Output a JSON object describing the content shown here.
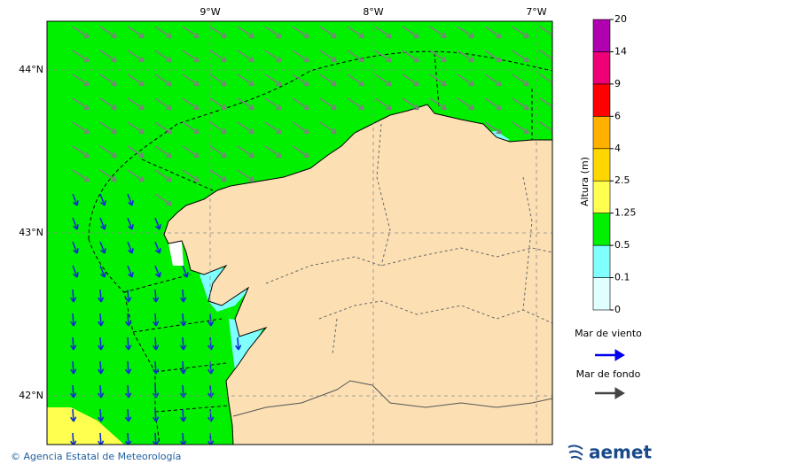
{
  "map": {
    "lon_labels": [
      "9°W",
      "8°W",
      "7°W"
    ],
    "lat_labels": [
      "44°N",
      "43°N",
      "42°N"
    ]
  },
  "colorbar": {
    "title": "Altura (m)",
    "ticks": [
      "0",
      "0.1",
      "0.5",
      "1.25",
      "2.5",
      "4",
      "6",
      "9",
      "14",
      "20"
    ],
    "colors": [
      "#e0ffff",
      "#80ffff",
      "#00f000",
      "#ffff50",
      "#ffd700",
      "#ffb000",
      "#ff0000",
      "#ee0077",
      "#b000b0"
    ]
  },
  "legend": {
    "wind_sea": "Mar de viento",
    "swell": "Mar de fondo"
  },
  "footer": {
    "copyright": "© Agencia Estatal de Meteorología",
    "logo": "aemet"
  }
}
